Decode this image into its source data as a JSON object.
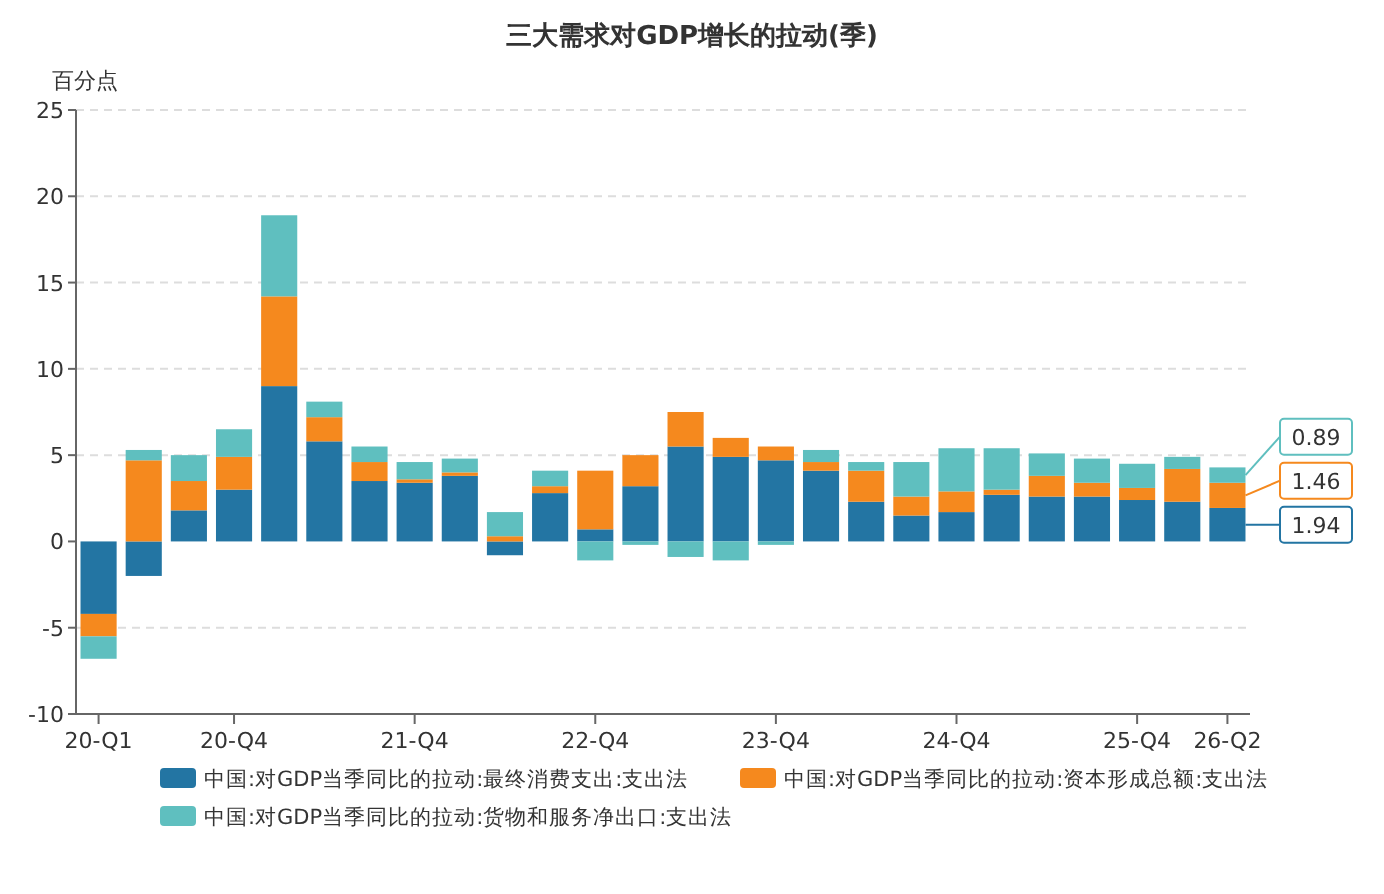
{
  "chart_data": {
    "type": "bar",
    "stacked": true,
    "title": "三大需求对GDP增长的拉动(季)",
    "ylabel": "百分点",
    "categories": [
      "20-Q1",
      null,
      null,
      "20-Q4",
      null,
      null,
      null,
      "21-Q4",
      null,
      null,
      null,
      "22-Q4",
      null,
      null,
      null,
      "23-Q4",
      null,
      null,
      null,
      "24-Q4",
      null,
      null,
      null,
      "25-Q4",
      null,
      "26-Q2"
    ],
    "series": [
      {
        "name": "中国:对GDP当季同比的拉动:最终消费支出:支出法",
        "color": "#2375a3",
        "values": [
          -4.2,
          -2.0,
          1.8,
          3.0,
          9.0,
          5.8,
          3.5,
          3.4,
          3.8,
          -0.8,
          2.8,
          0.7,
          3.2,
          5.5,
          4.9,
          4.7,
          4.1,
          2.3,
          1.5,
          1.7,
          2.7,
          2.6,
          2.6,
          2.4,
          2.3,
          1.94
        ],
        "value_labels": [
          null,
          null,
          null,
          null,
          null,
          null,
          null,
          null,
          null,
          null,
          null,
          null,
          null,
          null,
          null,
          null,
          null,
          null,
          null,
          null,
          null,
          null,
          null,
          null,
          null,
          "1.94"
        ]
      },
      {
        "name": "中国:对GDP当季同比的拉动:资本形成总额:支出法",
        "color": "#f5891e",
        "values": [
          -1.3,
          4.7,
          1.7,
          1.9,
          5.2,
          1.4,
          1.1,
          0.2,
          0.2,
          0.3,
          0.4,
          3.4,
          1.8,
          2.0,
          1.1,
          0.8,
          0.5,
          1.8,
          1.1,
          1.2,
          0.3,
          1.2,
          0.8,
          0.7,
          1.9,
          1.46
        ],
        "value_labels": [
          null,
          null,
          null,
          null,
          null,
          null,
          null,
          null,
          null,
          null,
          null,
          null,
          null,
          null,
          null,
          null,
          null,
          null,
          null,
          null,
          null,
          null,
          null,
          null,
          null,
          "1.46"
        ]
      },
      {
        "name": "中国:对GDP当季同比的拉动:货物和服务净出口:支出法",
        "color": "#5fbfbf",
        "values": [
          -1.3,
          0.6,
          1.5,
          1.6,
          4.7,
          0.9,
          0.9,
          1.0,
          0.8,
          1.4,
          0.9,
          -1.1,
          -0.2,
          -0.9,
          -1.1,
          -0.2,
          0.7,
          0.5,
          2.0,
          2.5,
          2.4,
          1.3,
          1.4,
          1.4,
          0.7,
          0.89
        ],
        "value_labels": [
          null,
          null,
          null,
          null,
          null,
          null,
          null,
          null,
          null,
          null,
          null,
          null,
          null,
          null,
          null,
          null,
          null,
          null,
          null,
          null,
          null,
          null,
          null,
          null,
          null,
          "0.89"
        ]
      }
    ],
    "ylim": [
      -10,
      25
    ],
    "yticks": [
      -10,
      -5,
      0,
      5,
      10,
      15,
      20,
      25
    ],
    "grid": "y",
    "legend": "bottom"
  }
}
